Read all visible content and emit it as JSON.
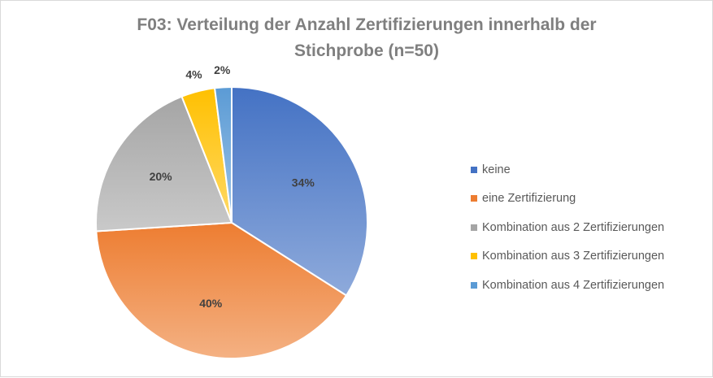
{
  "chart_data": {
    "type": "pie",
    "title_lines": [
      "F03: Verteilung der Anzahl Zertifizierungen innerhalb der",
      "Stichprobe (n=50)"
    ],
    "categories": [
      "keine",
      "eine Zertifizierung",
      "Kombination aus 2 Zertifizierungen",
      "Kombination aus 3 Zertifizierungen",
      "Kombination aus 4 Zertifizierungen"
    ],
    "values": [
      34,
      40,
      20,
      4,
      2
    ],
    "data_labels": [
      "34%",
      "40%",
      "20%",
      "4%",
      "2%"
    ],
    "colors": [
      "#4472c4",
      "#ed7d31",
      "#a5a5a5",
      "#ffc000",
      "#5b9bd5"
    ],
    "colors_light": [
      "#8eaadb",
      "#f4b183",
      "#c9c9c9",
      "#ffd966",
      "#9dc3e6"
    ],
    "start_angle_deg": 0,
    "direction": "clockwise",
    "legend_position": "right",
    "gradient_fill": true
  }
}
